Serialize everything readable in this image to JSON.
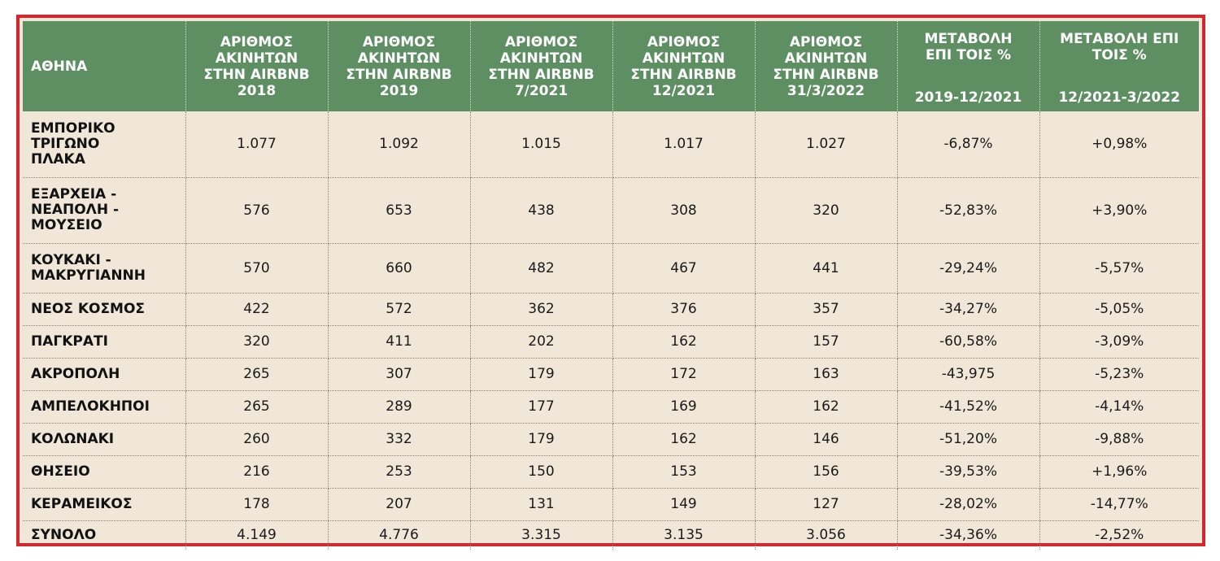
{
  "table": {
    "headers": [
      {
        "lines": [
          "ΑΘΗΝΑ"
        ]
      },
      {
        "lines": [
          "ΑΡΙΘΜΟΣ",
          "ΑΚΙΝΗΤΩΝ",
          "ΣΤΗΝ AIRBNB",
          "2018"
        ]
      },
      {
        "lines": [
          "ΑΡΙΘΜΟΣ",
          "ΑΚΙΝΗΤΩΝ",
          "ΣΤΗΝ AIRBNB",
          "2019"
        ]
      },
      {
        "lines": [
          "ΑΡΙΘΜΟΣ",
          "ΑΚΙΝΗΤΩΝ",
          "ΣΤΗΝ AIRBNB",
          "7/2021"
        ]
      },
      {
        "lines": [
          "ΑΡΙΘΜΟΣ",
          "ΑΚΙΝΗΤΩΝ",
          "ΣΤΗΝ AIRBNB",
          "12/2021"
        ]
      },
      {
        "lines": [
          "ΑΡΙΘΜΟΣ",
          "ΑΚΙΝΗΤΩΝ",
          "ΣΤΗΝ AIRBNB",
          "31/3/2022"
        ]
      },
      {
        "lines": [
          "ΜΕΤΑΒΟΛΗ",
          "ΕΠΙ ΤΟΙΣ %"
        ],
        "period": "2019-12/2021"
      },
      {
        "lines": [
          "ΜΕΤΑΒΟΛΗ ΕΠΙ",
          "ΤΟΙΣ %"
        ],
        "period": "12/2021-3/2022"
      }
    ],
    "rows": [
      {
        "area": [
          "ΕΜΠΟΡΙΚΟ",
          "ΤΡΙΓΩΝΟ",
          "ΠΛΑΚΑ"
        ],
        "values": [
          "1.077",
          "1.092",
          "1.015",
          "1.017",
          "1.027",
          "-6,87%",
          "+0,98%"
        ]
      },
      {
        "area": [
          "ΕΞΑΡΧΕΙΑ -",
          "ΝΕΑΠΟΛΗ -",
          "ΜΟΥΣΕΙΟ"
        ],
        "values": [
          "576",
          "653",
          "438",
          "308",
          "320",
          "-52,83%",
          "+3,90%"
        ]
      },
      {
        "area": [
          "ΚΟΥΚΑΚΙ -",
          "ΜΑΚΡΥΓΙΑΝΝΗ"
        ],
        "values": [
          "570",
          "660",
          "482",
          "467",
          "441",
          "-29,24%",
          "-5,57%"
        ]
      },
      {
        "area": [
          "ΝΕΟΣ ΚΟΣΜΟΣ"
        ],
        "values": [
          "422",
          "572",
          "362",
          "376",
          "357",
          "-34,27%",
          "-5,05%"
        ]
      },
      {
        "area": [
          "ΠΑΓΚΡΑΤΙ"
        ],
        "values": [
          "320",
          "411",
          "202",
          "162",
          "157",
          "-60,58%",
          "-3,09%"
        ]
      },
      {
        "area": [
          "ΑΚΡΟΠΟΛΗ"
        ],
        "values": [
          "265",
          "307",
          "179",
          "172",
          "163",
          "-43,975",
          "-5,23%"
        ]
      },
      {
        "area": [
          "ΑΜΠΕΛΟΚΗΠΟΙ"
        ],
        "values": [
          "265",
          "289",
          "177",
          "169",
          "162",
          "-41,52%",
          "-4,14%"
        ]
      },
      {
        "area": [
          "ΚΟΛΩΝΑΚΙ"
        ],
        "values": [
          "260",
          "332",
          "179",
          "162",
          "146",
          "-51,20%",
          "-9,88%"
        ]
      },
      {
        "area": [
          "ΘΗΣΕΙΟ"
        ],
        "values": [
          "216",
          "253",
          "150",
          "153",
          "156",
          "-39,53%",
          "+1,96%"
        ]
      },
      {
        "area": [
          "ΚΕΡΑΜΕΙΚΟΣ"
        ],
        "values": [
          "178",
          "207",
          "131",
          "149",
          "127",
          "-28,02%",
          "-14,77%"
        ]
      },
      {
        "area": [
          "ΣΥΝΟΛΟ"
        ],
        "values": [
          "4.149",
          "4.776",
          "3.315",
          "3.135",
          "3.056",
          "-34,36%",
          "-2,52%"
        ]
      }
    ]
  }
}
